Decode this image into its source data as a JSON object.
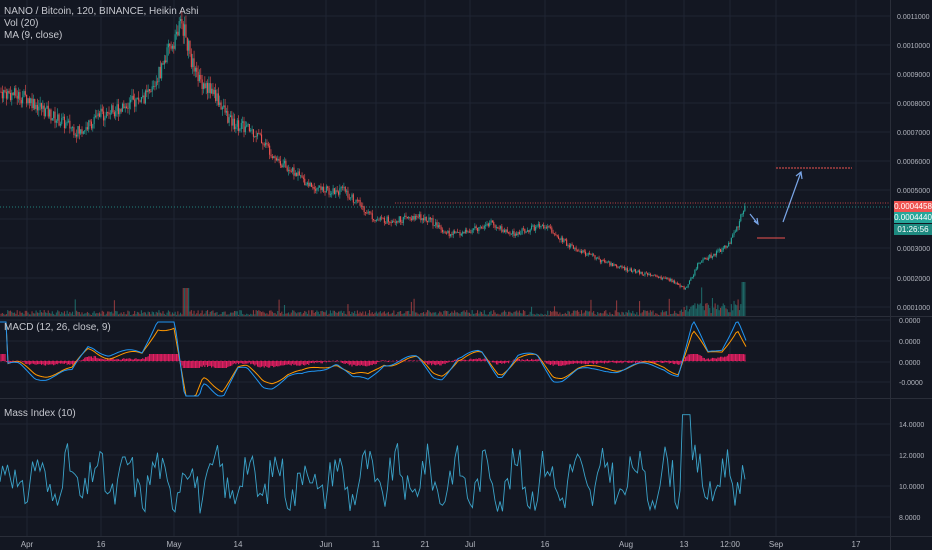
{
  "header": {
    "symbol_line": "NANO / Bitcoin, 120, BINANCE, Heikin Ashi",
    "vol_line": "Vol (20)",
    "ma_line": "MA (9, close)"
  },
  "panes": {
    "macd_label": "MACD (12, 26, close, 9)",
    "mass_label": "Mass Index (10)"
  },
  "price_axis": {
    "ticks": [
      "0.0011000",
      "0.0010000",
      "0.0009000",
      "0.0008000",
      "0.0007000",
      "0.0006000",
      "0.0005000",
      "0.0004000",
      "0.0003000",
      "0.0002000",
      "0.0001000"
    ],
    "tag_red": "0.0004458",
    "tag_green": "0.0004440",
    "tag_timer": "01:26:56"
  },
  "macd_axis": {
    "ticks": [
      "0.0000",
      "0.0000",
      "0.0000",
      "-0.0000"
    ]
  },
  "mass_axis": {
    "ticks": [
      "14.0000",
      "12.0000",
      "10.0000",
      "8.0000"
    ]
  },
  "time_axis": {
    "labels": [
      "Apr",
      "16",
      "May",
      "14",
      "Jun",
      "11",
      "21",
      "Jul",
      "16",
      "Aug",
      "13",
      "12:00",
      "Sep",
      "17"
    ]
  },
  "colors": {
    "background": "#131722",
    "grid": "#1f2433",
    "up": "#26a69a",
    "down": "#ef5350",
    "macd_line": "#2196f3",
    "signal_line": "#ff9800",
    "macd_hist": "#e91e63",
    "mass_line": "#3ba3c9",
    "annotation_arrow": "#7aa6e8"
  },
  "chart_data": [
    {
      "type": "candlestick",
      "title": "NANO / Bitcoin, 120, BINANCE, Heikin Ashi",
      "x_labels": [
        "Apr",
        "16",
        "May",
        "14",
        "Jun",
        "11",
        "21",
        "Jul",
        "16",
        "Aug",
        "13",
        "12:00",
        "Sep",
        "17"
      ],
      "ylim": [
        8e-05,
        0.00115
      ],
      "key_closes": [
        {
          "label": "Apr",
          "value": 0.00082
        },
        {
          "label": "16",
          "value": 0.00076
        },
        {
          "label": "May",
          "value": 0.00104
        },
        {
          "label": "14",
          "value": 0.00072
        },
        {
          "label": "Jun",
          "value": 0.0005
        },
        {
          "label": "11",
          "value": 0.00039
        },
        {
          "label": "21",
          "value": 0.0004
        },
        {
          "label": "Jul",
          "value": 0.00036
        },
        {
          "label": "16",
          "value": 0.00037
        },
        {
          "label": "Aug",
          "value": 0.00023
        },
        {
          "label": "13",
          "value": 0.00017
        },
        {
          "label": "12:00",
          "value": 0.00044
        }
      ],
      "last_price": 0.000444
    },
    {
      "type": "line",
      "title": "MACD (12, 26, close, 9)",
      "series": [
        {
          "name": "MACD"
        },
        {
          "name": "Signal"
        }
      ]
    },
    {
      "type": "line",
      "title": "Mass Index (10)",
      "ylim": [
        7.5,
        15.5
      ],
      "range": [
        8.0,
        15.0
      ]
    }
  ]
}
